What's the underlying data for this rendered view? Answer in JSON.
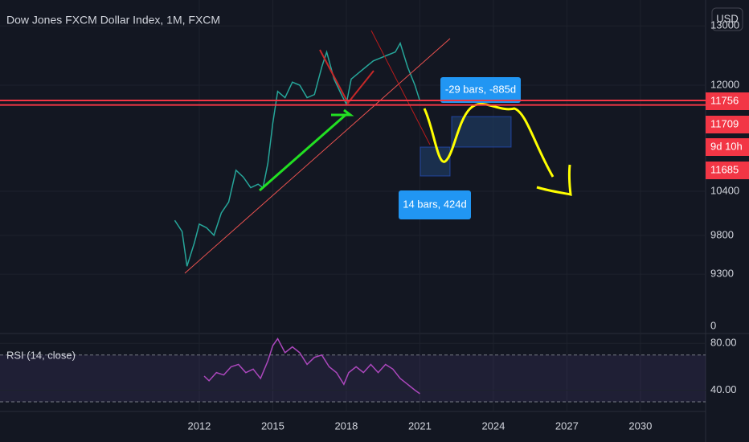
{
  "chart_data": [
    {
      "type": "line",
      "title": "Dow Jones FXCM Dollar Index, 1M, FXCM",
      "currency": "USD",
      "log_scale": true,
      "color": "#26a69a",
      "x": [
        2011.0,
        2011.3,
        2011.5,
        2011.8,
        2012.0,
        2012.3,
        2012.6,
        2012.9,
        2013.2,
        2013.5,
        2013.8,
        2014.1,
        2014.4,
        2014.6,
        2014.8,
        2015.0,
        2015.2,
        2015.5,
        2015.8,
        2016.1,
        2016.4,
        2016.7,
        2017.0,
        2017.2,
        2017.5,
        2017.8,
        2018.0,
        2018.2,
        2018.5,
        2018.8,
        2019.1,
        2019.4,
        2019.7,
        2020.0,
        2020.2,
        2020.5,
        2020.8,
        2021.0
      ],
      "values": [
        10000,
        9850,
        9400,
        9700,
        9950,
        9900,
        9800,
        10100,
        10250,
        10700,
        10600,
        10450,
        10500,
        10450,
        10800,
        11400,
        11900,
        11800,
        12050,
        12000,
        11800,
        11850,
        12300,
        12550,
        12100,
        11850,
        11700,
        12100,
        12200,
        12300,
        12400,
        12450,
        12500,
        12550,
        12700,
        12300,
        12000,
        11750
      ],
      "xlim": [
        2003.87,
        2032.66
      ],
      "xticks": [
        2012,
        2015,
        2018,
        2021,
        2024,
        2027,
        2030
      ],
      "ylim": [
        8584,
        13462
      ],
      "yticks": [
        13000,
        12000,
        10400,
        9800,
        9300
      ],
      "axis_fragment": "0",
      "price_lines": [
        11756,
        11685
      ],
      "price_tags": [
        11756,
        11709,
        "9d 10h",
        11685
      ],
      "annotations": [
        "-29 bars, -885d",
        "14 bars, 424d"
      ]
    },
    {
      "type": "line",
      "title": "RSI (14, close)",
      "color": "#ab47bc",
      "x": [
        2012.2,
        2012.4,
        2012.7,
        2013.0,
        2013.3,
        2013.6,
        2013.9,
        2014.2,
        2014.5,
        2014.8,
        2015.0,
        2015.2,
        2015.5,
        2015.8,
        2016.1,
        2016.4,
        2016.7,
        2017.0,
        2017.3,
        2017.6,
        2017.9,
        2018.1,
        2018.4,
        2018.7,
        2019.0,
        2019.3,
        2019.6,
        2019.9,
        2020.2,
        2020.5,
        2020.8,
        2021.0
      ],
      "values": [
        52,
        48,
        55,
        53,
        60,
        62,
        55,
        58,
        50,
        65,
        78,
        84,
        72,
        77,
        72,
        62,
        68,
        70,
        60,
        55,
        45,
        55,
        60,
        55,
        62,
        55,
        62,
        58,
        50,
        45,
        40,
        37
      ],
      "xlim": [
        2003.87,
        2032.66
      ],
      "ylim": [
        21.8,
        88.4
      ],
      "yticks": [
        {
          "value": 80,
          "label": "80.00"
        },
        {
          "value": 40,
          "label": "40.00"
        }
      ],
      "bands": [
        70,
        30
      ]
    }
  ]
}
